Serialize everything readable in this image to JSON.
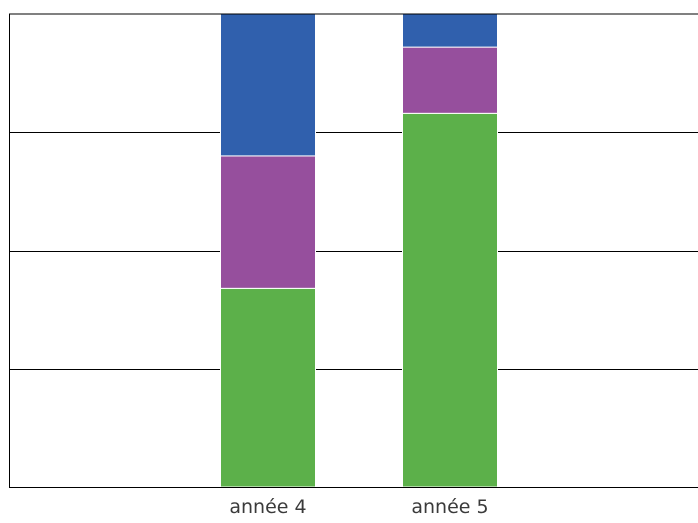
{
  "chart_data": {
    "type": "bar",
    "stacked": true,
    "categories": [
      "année 4",
      "année 5"
    ],
    "series": [
      {
        "values": [
          42,
          79
        ],
        "color": "#5cb04a"
      },
      {
        "values": [
          28,
          14
        ],
        "color": "#964f9d"
      },
      {
        "values": [
          30,
          7
        ],
        "color": "#3060ad"
      }
    ],
    "ylim": [
      0,
      100
    ],
    "grid": true,
    "legend": "none"
  }
}
